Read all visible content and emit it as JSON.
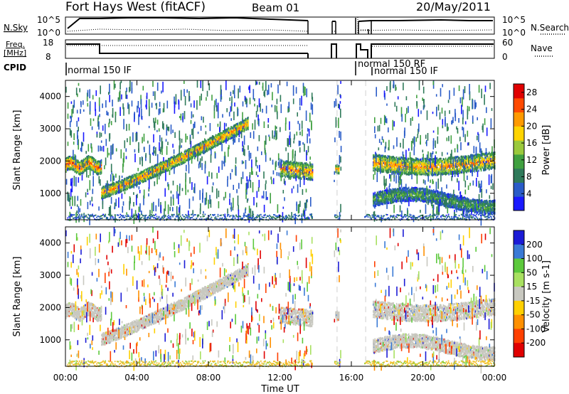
{
  "header": {
    "title": "Fort Hays West (fitACF)",
    "beam": "Beam 01",
    "date": "20/May/2011"
  },
  "top_panels": {
    "nsky_label": "N.Sky",
    "nsky_ticks": [
      "10^5",
      "10^0"
    ],
    "nsearch_label": "N.Search",
    "nsearch_ticks": [
      "10^5",
      "10^0"
    ],
    "freq_label": "Freq.",
    "freq_unit": "[MHz]",
    "freq_ticks": [
      "18",
      "8"
    ],
    "nave_label": "Nave",
    "nave_ticks": [
      "60",
      "0"
    ],
    "cpid_label": "CPID",
    "cpid_modes": [
      "normal 150 IF",
      "normal 150 RF",
      "normal 150 IF"
    ]
  },
  "chart_data": [
    {
      "type": "scatter",
      "title": "",
      "xlabel": "",
      "ylabel": "Slant Range [km]",
      "x_ticks": [
        "00:00",
        "04:00",
        "08:00",
        "12:00",
        "16:00",
        "20:00",
        "00:00"
      ],
      "xlim_hours": [
        0,
        24
      ],
      "ylim": [
        180,
        4500
      ],
      "y_ticks": [
        1000,
        2000,
        3000,
        4000
      ],
      "colorbar": {
        "label": "Power [dB]",
        "ticks": [
          4,
          8,
          12,
          16,
          20,
          24,
          28
        ],
        "range": [
          0,
          30
        ],
        "colors": [
          "#1a1aff",
          "#2a5cc8",
          "#2f7a5a",
          "#40a040",
          "#9ac93c",
          "#ffd400",
          "#ff9a00",
          "#ff4a00",
          "#e00000"
        ]
      },
      "features": [
        {
          "name": "early band",
          "t_hours": [
            0.0,
            2.0
          ],
          "range_km": [
            1700,
            2100
          ],
          "peak_dB": 24
        },
        {
          "name": "rising band",
          "t_hours": [
            2.0,
            10.2
          ],
          "range_km_start": 1050,
          "range_km_end": 3200,
          "peak_dB": 22
        },
        {
          "name": "midday band",
          "t_hours": [
            12.0,
            13.8
          ],
          "range_km": [
            1500,
            2100
          ],
          "peak_dB": 22
        },
        {
          "name": "short echo",
          "t_hours": [
            15.1,
            15.3
          ],
          "range_km": [
            1650,
            1900
          ],
          "peak_dB": 22
        },
        {
          "name": "evening band",
          "t_hours": [
            17.2,
            24.0
          ],
          "range_km": [
            1700,
            2300
          ],
          "peak_dB": 22
        },
        {
          "name": "lower evening band",
          "t_hours": [
            17.2,
            24.0
          ],
          "range_km": [
            500,
            1100
          ],
          "peak_dB": 12
        }
      ],
      "data_gaps_hours": [
        [
          13.8,
          15.0
        ],
        [
          15.4,
          16.7
        ]
      ]
    },
    {
      "type": "scatter",
      "title": "",
      "xlabel": "Time UT",
      "ylabel": "Slant Range [km]",
      "x_ticks": [
        "00:00",
        "04:00",
        "08:00",
        "12:00",
        "16:00",
        "20:00",
        "00:00"
      ],
      "xlim_hours": [
        0,
        24
      ],
      "ylim": [
        180,
        4500
      ],
      "y_ticks": [
        1000,
        2000,
        3000,
        4000
      ],
      "colorbar": {
        "label": "Velocity [m s-1]",
        "ticks": [
          200,
          100,
          50,
          15,
          -15,
          -50,
          -100,
          -200
        ],
        "colors": [
          "#1b1bd6",
          "#3a7ad6",
          "#5cc93c",
          "#a8e060",
          "#c8c8c0",
          "#ffd000",
          "#ff9000",
          "#ff4000",
          "#e00000"
        ]
      },
      "ground_scatter_color": "#c8c8c0"
    }
  ]
}
